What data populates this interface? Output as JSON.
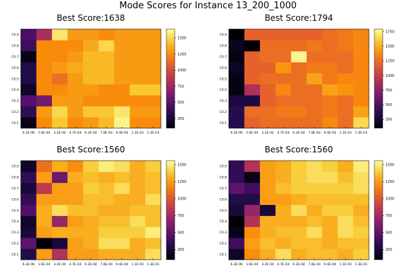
{
  "figure_title": "Mode Scores for Instance 13_200_1000",
  "chart_data": [
    {
      "type": "heatmap",
      "title": "Best Score:1638",
      "x_categories": [
        "6.3E-06",
        "1.6E-04",
        "3.2E-04",
        "4.7E-04",
        "6.3E-04",
        "7.8E-04",
        "9.4E-04",
        "1.1E-03",
        "1.3E-03"
      ],
      "y_categories": [
        "C0.1",
        "C0.2",
        "C0.3",
        "C0.4",
        "C0.5",
        "C0.6",
        "C0.7",
        "C0.8",
        "C0.9"
      ],
      "colorbar_ticks": [
        250,
        500,
        750,
        1000,
        1250,
        1500
      ],
      "zlim": [
        100,
        1638
      ],
      "values": [
        [
          150,
          1250,
          1450,
          1250,
          1300,
          1400,
          1600,
          1250,
          1250
        ],
        [
          350,
          1300,
          1500,
          1300,
          1450,
          1450,
          1550,
          1300,
          1300
        ],
        [
          500,
          600,
          1300,
          1300,
          1250,
          1250,
          1250,
          1250,
          1250
        ],
        [
          200,
          1250,
          1250,
          1300,
          1300,
          1250,
          1250,
          1450,
          1450
        ],
        [
          300,
          1250,
          1150,
          1300,
          1400,
          1400,
          1300,
          1300,
          1300
        ],
        [
          300,
          1250,
          1300,
          1350,
          1400,
          1400,
          1300,
          1300,
          1300
        ],
        [
          150,
          1250,
          1250,
          1300,
          1400,
          1400,
          1300,
          1300,
          1300
        ],
        [
          400,
          1250,
          1250,
          1250,
          1350,
          1500,
          1300,
          1300,
          1300
        ],
        [
          450,
          800,
          1550,
          1300,
          1300,
          1250,
          1300,
          1300,
          1300
        ]
      ]
    },
    {
      "type": "heatmap",
      "title": "Best Score:1794",
      "x_categories": [
        "6.3E-06",
        "1.6E-04",
        "3.2E-04",
        "4.7E-04",
        "6.3E-04",
        "7.8E-04",
        "9.4E-04",
        "1.1E-03",
        "1.3E-03"
      ],
      "y_categories": [
        "C0.1",
        "C0.2",
        "C0.3",
        "C0.4",
        "C0.5",
        "C0.6",
        "C0.7",
        "C0.8",
        "C0.9"
      ],
      "colorbar_ticks": [
        250,
        500,
        750,
        1000,
        1250,
        1500,
        1750
      ],
      "zlim": [
        100,
        1794
      ],
      "values": [
        [
          350,
          1200,
          1250,
          1250,
          1250,
          1250,
          1350,
          1250,
          1650
        ],
        [
          350,
          1250,
          1250,
          1300,
          1300,
          1250,
          1300,
          1250,
          1450
        ],
        [
          300,
          300,
          1200,
          1250,
          1250,
          1250,
          1300,
          1250,
          1350
        ],
        [
          150,
          900,
          1200,
          1350,
          1250,
          1250,
          1450,
          1400,
          1350
        ],
        [
          150,
          1200,
          1250,
          1250,
          1250,
          1450,
          1300,
          1350,
          1350
        ],
        [
          200,
          1200,
          1200,
          1400,
          1250,
          1300,
          1300,
          1250,
          1350
        ],
        [
          150,
          1200,
          1250,
          1250,
          1750,
          1250,
          1250,
          1250,
          1350
        ],
        [
          200,
          100,
          1250,
          1250,
          1250,
          1300,
          1250,
          1300,
          1350
        ],
        [
          100,
          1200,
          1200,
          1200,
          1200,
          1200,
          1250,
          1300,
          1350
        ]
      ]
    },
    {
      "type": "heatmap",
      "title": "Best Score:1560",
      "x_categories": [
        "6.3E-06",
        "1.6E-04",
        "3.2E-04",
        "4.7E-04",
        "6.3E-04",
        "7.8E-04",
        "9.4E-04",
        "1.1E-03",
        "1.3E-03"
      ],
      "y_categories": [
        "C0.1",
        "C0.2",
        "C0.3",
        "C0.4",
        "C0.5",
        "C0.6",
        "C0.7",
        "C0.8",
        "C0.9"
      ],
      "colorbar_ticks": [
        250,
        500,
        750,
        1000,
        1250,
        1500
      ],
      "zlim": [
        100,
        1560
      ],
      "values": [
        [
          300,
          1250,
          800,
          1250,
          1250,
          1300,
          1300,
          1300,
          1450
        ],
        [
          500,
          100,
          250,
          1250,
          1300,
          1450,
          1450,
          1300,
          1350
        ],
        [
          250,
          1250,
          1300,
          1300,
          1300,
          1400,
          1400,
          1400,
          1500
        ],
        [
          200,
          1300,
          700,
          1250,
          1300,
          1350,
          1350,
          1450,
          1350
        ],
        [
          450,
          1300,
          1450,
          1350,
          1350,
          1300,
          1300,
          1350,
          1350
        ],
        [
          350,
          1250,
          1250,
          1250,
          1350,
          1350,
          1300,
          1300,
          1450
        ],
        [
          250,
          850,
          1250,
          1250,
          1400,
          1350,
          1450,
          1300,
          1350
        ],
        [
          350,
          1250,
          550,
          1300,
          1350,
          1300,
          1350,
          1300,
          1350
        ],
        [
          200,
          1100,
          1300,
          1200,
          1400,
          1500,
          1450,
          1300,
          1400
        ]
      ]
    },
    {
      "type": "heatmap",
      "title": "Best Score:1560",
      "x_categories": [
        "6.3E-06",
        "1.6E-04",
        "3.2E-04",
        "4.7E-04",
        "6.3E-04",
        "7.8E-04",
        "9.4E-04",
        "1.1E-03",
        "1.3E-03"
      ],
      "y_categories": [
        "C0.1",
        "C0.2",
        "C0.3",
        "C0.4",
        "C0.5",
        "C0.6",
        "C0.7",
        "C0.8",
        "C0.9"
      ],
      "colorbar_ticks": [
        250,
        500,
        750,
        1000,
        1250,
        1500
      ],
      "zlim": [
        100,
        1560
      ],
      "values": [
        [
          200,
          1200,
          1300,
          1450,
          1300,
          1350,
          1350,
          1300,
          1400
        ],
        [
          400,
          1250,
          1350,
          1300,
          1350,
          1350,
          1300,
          1350,
          1350
        ],
        [
          150,
          1200,
          1300,
          1350,
          1350,
          1450,
          1300,
          1450,
          1400
        ],
        [
          100,
          800,
          1300,
          1300,
          1300,
          1350,
          1300,
          1450,
          1350
        ],
        [
          250,
          700,
          250,
          1300,
          1450,
          1300,
          1400,
          1400,
          1300
        ],
        [
          300,
          300,
          1250,
          1250,
          1300,
          1350,
          1350,
          1350,
          1350
        ],
        [
          500,
          400,
          1250,
          1350,
          1400,
          1400,
          1400,
          1400,
          1450
        ],
        [
          350,
          150,
          1250,
          1300,
          1400,
          1450,
          1450,
          1350,
          1450
        ],
        [
          350,
          800,
          1250,
          1300,
          1400,
          1450,
          1400,
          1300,
          1500
        ]
      ]
    }
  ]
}
